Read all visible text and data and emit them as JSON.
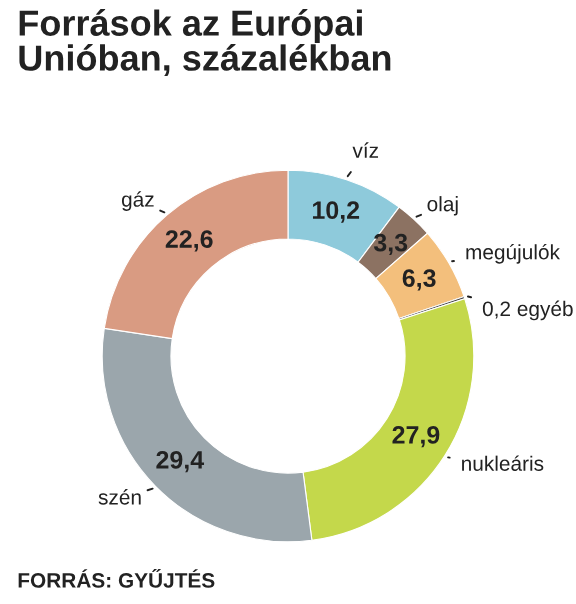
{
  "chart_data": {
    "type": "donut",
    "title": "Források az Európai\nUnióban, százalékban",
    "categories": [
      "víz",
      "olaj",
      "megújulók",
      "egyéb",
      "nukleáris",
      "szén",
      "gáz"
    ],
    "values": [
      10.2,
      3.3,
      6.3,
      0.2,
      27.9,
      29.4,
      22.6
    ],
    "value_labels": [
      "10,2",
      "3,3",
      "6,3",
      "0,2",
      "27,9",
      "29,4",
      "22,6"
    ],
    "colors": [
      "#8ecadb",
      "#8c7262",
      "#f3bf7c",
      "#4a4a4a",
      "#c4d84b",
      "#9ba6ac",
      "#d99b82"
    ],
    "annotations": [
      "FORRÁS: GYŰJTÉS"
    ]
  }
}
